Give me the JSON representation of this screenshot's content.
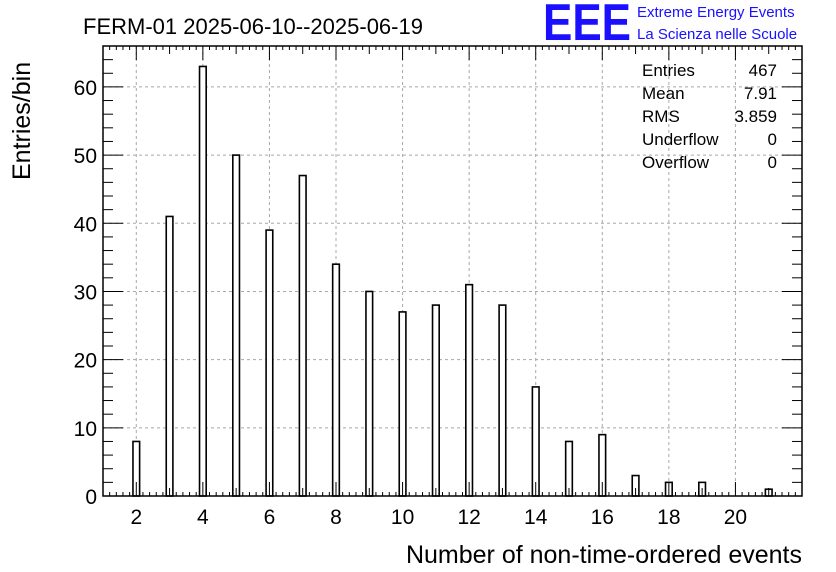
{
  "title": "FERM-01 2025-06-10--2025-06-19",
  "logo": {
    "mark": "EEE",
    "line1": "Extreme Energy Events",
    "line2": "La Scienza nelle Scuole",
    "color": "#1a10ff"
  },
  "stats": {
    "rows": [
      {
        "label": "Entries",
        "value": "467"
      },
      {
        "label": "Mean",
        "value": "7.91"
      },
      {
        "label": "RMS",
        "value": "3.859"
      },
      {
        "label": "Underflow",
        "value": "0"
      },
      {
        "label": "Overflow",
        "value": "0"
      }
    ]
  },
  "chart_data": {
    "type": "bar",
    "xlabel": "Number of non-time-ordered events",
    "ylabel": "Entries/bin",
    "xlim": [
      1,
      22
    ],
    "ylim": [
      0,
      66
    ],
    "x_ticks": [
      2,
      4,
      6,
      8,
      10,
      12,
      14,
      16,
      18,
      20
    ],
    "y_ticks": [
      0,
      10,
      20,
      30,
      40,
      50,
      60
    ],
    "grid": true,
    "bar_width": 0.2,
    "x": [
      2,
      3,
      4,
      5,
      6,
      7,
      8,
      9,
      10,
      11,
      12,
      13,
      14,
      15,
      16,
      17,
      18,
      19,
      21
    ],
    "values": [
      8,
      41,
      63,
      50,
      39,
      47,
      34,
      30,
      27,
      28,
      31,
      28,
      16,
      8,
      9,
      3,
      2,
      2,
      1
    ]
  }
}
